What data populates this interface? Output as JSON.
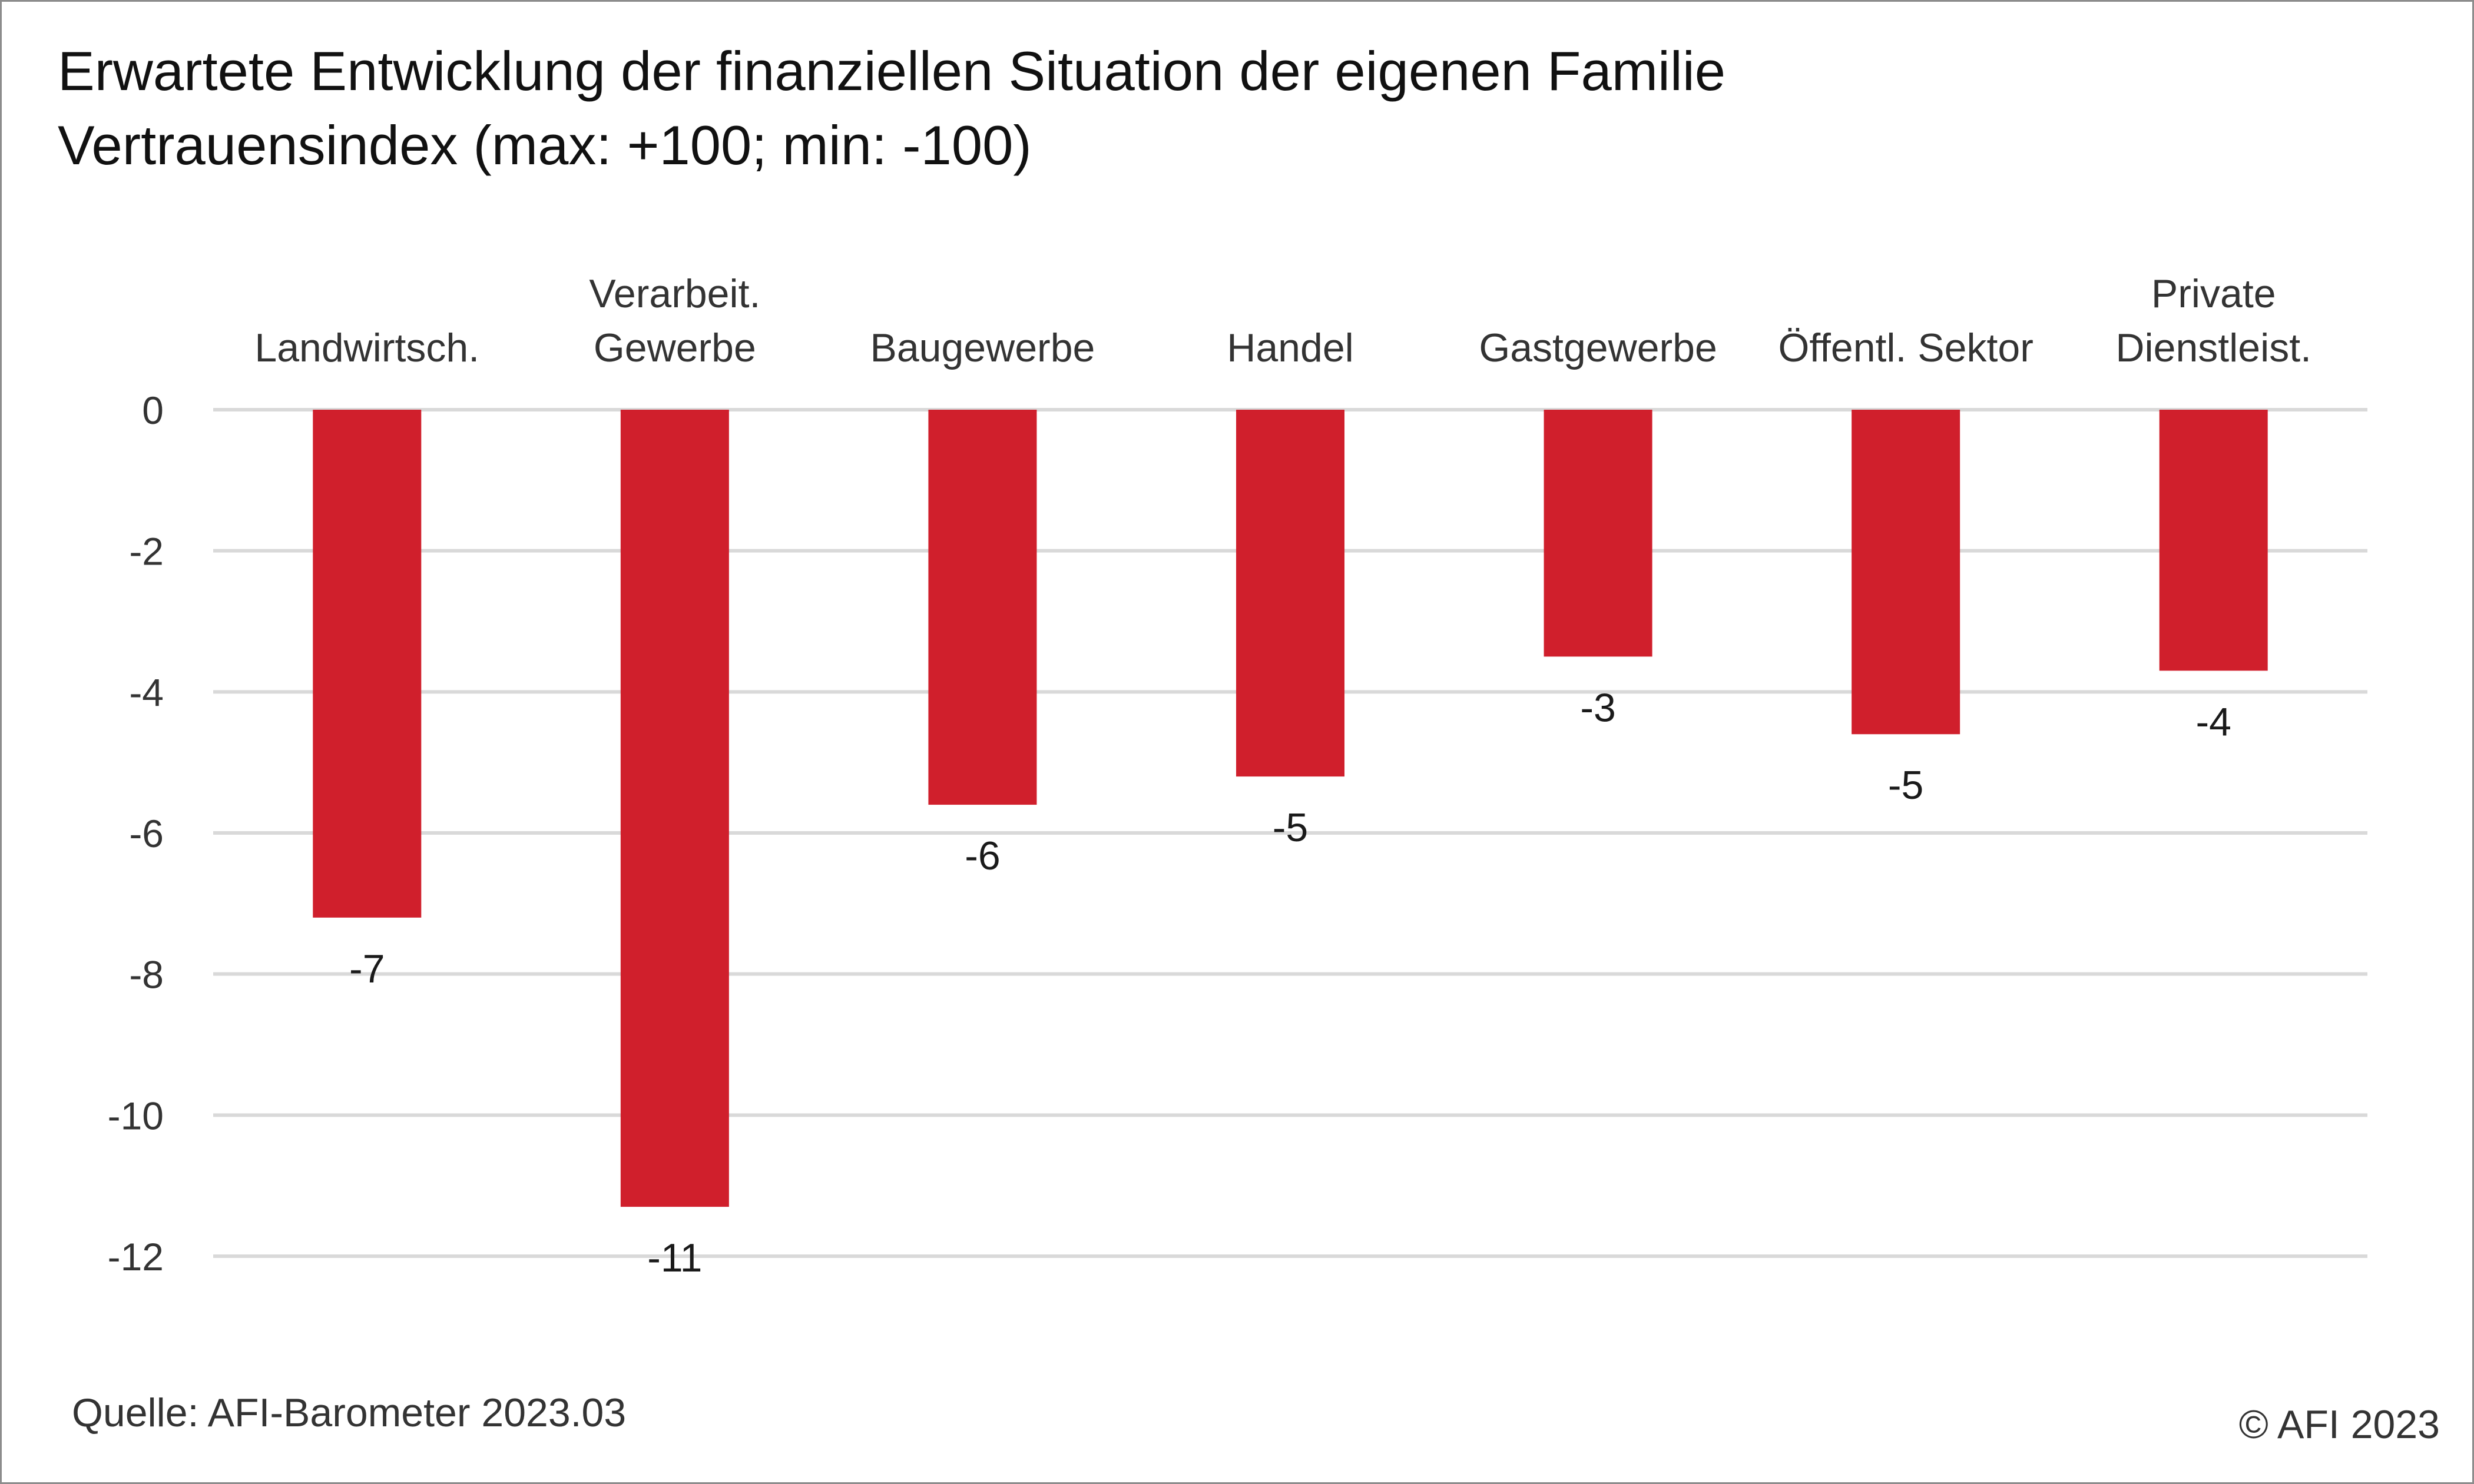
{
  "chart_data": {
    "type": "bar",
    "title": "Erwartete Entwicklung der finanziellen Situation der eigenen Familie",
    "subtitle": "Vertrauensindex (max: +100; min: -100)",
    "categories": [
      [
        "Landwirtsch."
      ],
      [
        "Verarbeit.",
        "Gewerbe"
      ],
      [
        "Baugewerbe"
      ],
      [
        "Handel"
      ],
      [
        "Gastgewerbe"
      ],
      [
        "Öffentl. Sektor"
      ],
      [
        "Private",
        "Dienstleist."
      ]
    ],
    "values": [
      -7.2,
      -11.3,
      -5.6,
      -5.2,
      -3.5,
      -4.6,
      -3.7
    ],
    "data_labels": [
      "-7",
      "-11",
      "-6",
      "-5",
      "-3",
      "-5",
      "-4"
    ],
    "ylim": [
      -12,
      0
    ],
    "yticks": [
      0,
      -2,
      -4,
      -6,
      -8,
      -10,
      -12
    ],
    "ytick_labels": [
      "0",
      "-2",
      "-4",
      "-6",
      "-8",
      "-10",
      "-12"
    ],
    "grid": true,
    "legend": "none",
    "bar_color": "#d01f2c",
    "grid_color": "#d9d9d9",
    "category_axis_position": "top"
  },
  "footer": {
    "source": "Quelle: AFI-Barometer 2023.03",
    "copyright": "© AFI 2023"
  }
}
